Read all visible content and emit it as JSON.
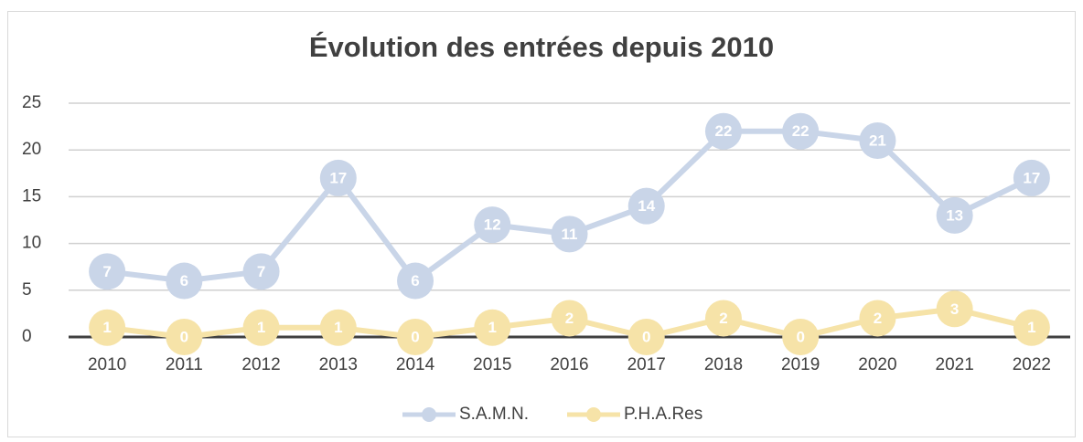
{
  "chart_data": {
    "type": "line",
    "title": "Évolution des entrées depuis 2010",
    "categories": [
      "2010",
      "2011",
      "2012",
      "2013",
      "2014",
      "2015",
      "2016",
      "2017",
      "2018",
      "2019",
      "2020",
      "2021",
      "2022"
    ],
    "series": [
      {
        "name": "S.A.M.N.",
        "color": "#c9d5e8",
        "values": [
          7,
          6,
          7,
          17,
          6,
          12,
          11,
          14,
          22,
          22,
          21,
          13,
          17
        ]
      },
      {
        "name": "P.H.A.Res",
        "color": "#f6e3a8",
        "values": [
          1,
          0,
          1,
          1,
          0,
          1,
          2,
          0,
          2,
          0,
          2,
          3,
          1
        ]
      }
    ],
    "ylim": [
      0,
      25
    ],
    "yticks": [
      0,
      5,
      10,
      15,
      20,
      25
    ],
    "grid": true,
    "legend": "bottom"
  }
}
